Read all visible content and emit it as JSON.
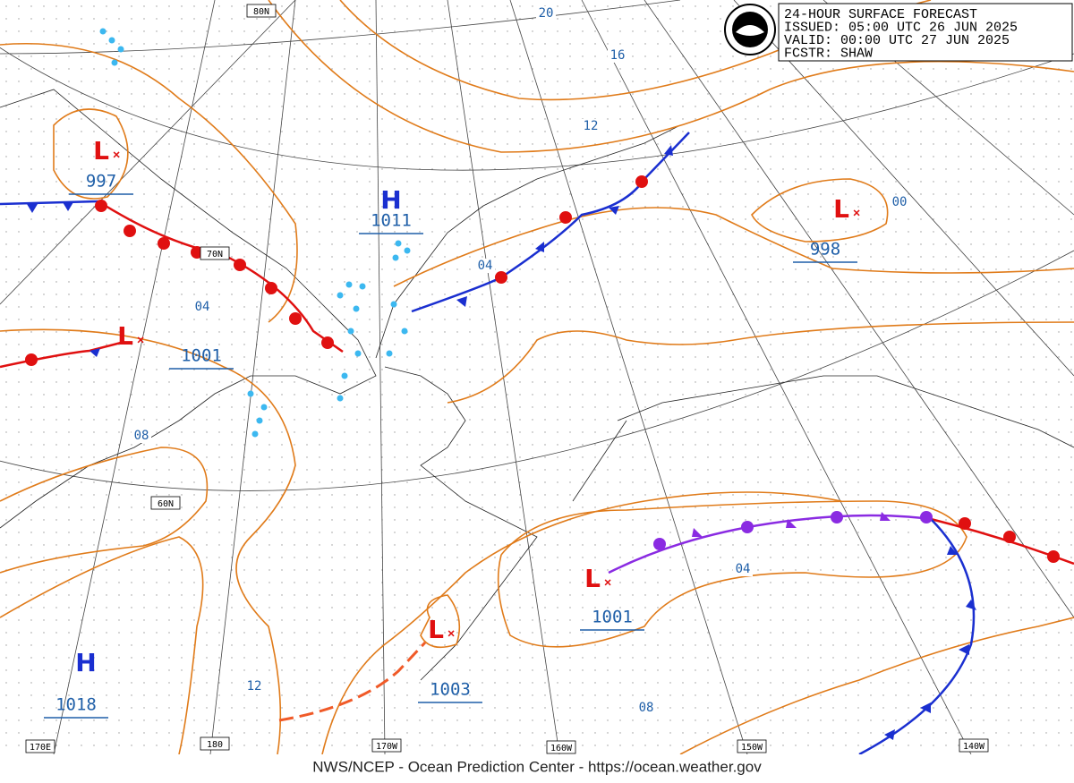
{
  "header": {
    "lines": [
      "24-HOUR SURFACE FORECAST",
      "ISSUED: 05:00 UTC 26 JUN 2025",
      "VALID:  00:00 UTC 27 JUN 2025",
      "FCSTR:  SHAW"
    ]
  },
  "centers": [
    {
      "type": "L",
      "pressure": 997
    },
    {
      "type": "H",
      "pressure": 1011
    },
    {
      "type": "L",
      "pressure": 998
    },
    {
      "type": "L",
      "pressure": 1001
    },
    {
      "type": "L",
      "pressure": 1001
    },
    {
      "type": "L",
      "pressure": 1003
    },
    {
      "type": "H",
      "pressure": 1018
    }
  ],
  "isobar_labels": [
    "20",
    "16",
    "12",
    "04",
    "04",
    "08",
    "12",
    "04",
    "08",
    "00"
  ],
  "grid_labels": [
    "80N",
    "70N",
    "60N",
    "170E",
    "180",
    "170W",
    "160W",
    "150W",
    "140W"
  ],
  "footer": "NWS/NCEP - Ocean Prediction Center - https://ocean.weather.gov"
}
